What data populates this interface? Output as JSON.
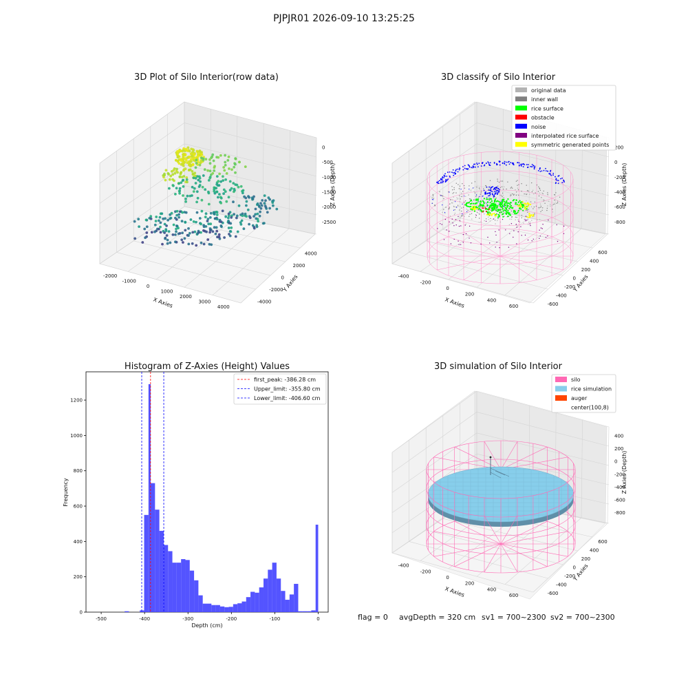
{
  "figure": {
    "suptitle": "PJPJR01 2026-09-10 13:25:25",
    "status": {
      "flag": "flag = 0",
      "avg": "avgDepth = 320 cm",
      "sv1": "sv1 = 700~2300",
      "sv2": "sv2 = 700~2300"
    }
  },
  "panels": {
    "raw": {
      "title": "3D Plot of Silo Interior(row data)",
      "xlabel": "X Axies",
      "ylabel": "Y Axies",
      "zlabel": "Z Axies (Depth)",
      "xticks": [
        "-2000",
        "-1000",
        "0",
        "1000",
        "2000",
        "3000",
        "4000"
      ],
      "yticks": [
        "4000",
        "2000",
        "0",
        "-2000",
        "-4000"
      ],
      "zticks": [
        "0",
        "-500",
        "-1000",
        "-1500",
        "-2000",
        "-2500"
      ]
    },
    "classify": {
      "title": "3D classify of Silo Interior",
      "xlabel": "X Axies",
      "ylabel": "Y Axies",
      "zlabel": "Z Axies (Depth)",
      "xticks": [
        "-400",
        "-200",
        "0",
        "200",
        "400",
        "600"
      ],
      "yticks": [
        "600",
        "400",
        "200",
        "0",
        "-200",
        "-400",
        "-600"
      ],
      "zticks": [
        "200",
        "0",
        "-200",
        "-400",
        "-600",
        "-800"
      ],
      "legend": [
        {
          "label": "original data",
          "color": "#b3b3b3"
        },
        {
          "label": "inner wall",
          "color": "#808080"
        },
        {
          "label": "rice surface",
          "color": "#00ff00"
        },
        {
          "label": "obstacle",
          "color": "#ff0000"
        },
        {
          "label": "noise",
          "color": "#0000ff"
        },
        {
          "label": "interpolated rice surface",
          "color": "#800080"
        },
        {
          "label": "symmetric generated points",
          "color": "#ffff00"
        }
      ]
    },
    "simulation": {
      "title": "3D simulation of Silo Interior",
      "xlabel": "X Axies",
      "ylabel": "Y Axies",
      "zlabel": "Z Axies (Depth)",
      "xticks": [
        "-400",
        "-200",
        "0",
        "200",
        "400",
        "600"
      ],
      "yticks": [
        "600",
        "400",
        "200",
        "0",
        "-200",
        "-400",
        "-600"
      ],
      "zticks": [
        "400",
        "200",
        "0",
        "-200",
        "-400",
        "-600",
        "-800"
      ],
      "legend": [
        {
          "label": "silo",
          "color": "#ff69b4"
        },
        {
          "label": "rice simulation",
          "color": "#87ceeb"
        },
        {
          "label": "auger",
          "color": "#ff4500"
        },
        {
          "label": "center(100,8)",
          "color": "#ffffff"
        }
      ]
    }
  },
  "chart_data": {
    "type": "bar",
    "title": "Histogram of Z-Axies (Height) Values",
    "xlabel": "Depth (cm)",
    "ylabel": "Frequency",
    "xlim": [
      -535,
      23
    ],
    "ylim": [
      0,
      1360
    ],
    "xticks": [
      -500,
      -400,
      -300,
      -200,
      -100,
      0
    ],
    "yticks": [
      0,
      200,
      400,
      600,
      800,
      1000,
      1200
    ],
    "bins": [
      {
        "x0": -446,
        "x1": -436,
        "value": 5
      },
      {
        "x0": -411,
        "x1": -401,
        "value": 10
      },
      {
        "x0": -401,
        "x1": -391,
        "value": 550
      },
      {
        "x0": -391,
        "x1": -386,
        "value": 1290
      },
      {
        "x0": -386,
        "x1": -376,
        "value": 730
      },
      {
        "x0": -376,
        "x1": -366,
        "value": 580
      },
      {
        "x0": -366,
        "x1": -356,
        "value": 460
      },
      {
        "x0": -356,
        "x1": -346,
        "value": 380
      },
      {
        "x0": -346,
        "x1": -336,
        "value": 345
      },
      {
        "x0": -336,
        "x1": -326,
        "value": 280
      },
      {
        "x0": -326,
        "x1": -316,
        "value": 280
      },
      {
        "x0": -316,
        "x1": -306,
        "value": 300
      },
      {
        "x0": -306,
        "x1": -296,
        "value": 295
      },
      {
        "x0": -296,
        "x1": -286,
        "value": 235
      },
      {
        "x0": -286,
        "x1": -276,
        "value": 180
      },
      {
        "x0": -276,
        "x1": -266,
        "value": 95
      },
      {
        "x0": -266,
        "x1": -256,
        "value": 48
      },
      {
        "x0": -256,
        "x1": -246,
        "value": 48
      },
      {
        "x0": -246,
        "x1": -236,
        "value": 40
      },
      {
        "x0": -236,
        "x1": -226,
        "value": 40
      },
      {
        "x0": -226,
        "x1": -216,
        "value": 32
      },
      {
        "x0": -216,
        "x1": -206,
        "value": 28
      },
      {
        "x0": -206,
        "x1": -196,
        "value": 30
      },
      {
        "x0": -196,
        "x1": -186,
        "value": 45
      },
      {
        "x0": -186,
        "x1": -176,
        "value": 50
      },
      {
        "x0": -176,
        "x1": -166,
        "value": 60
      },
      {
        "x0": -166,
        "x1": -156,
        "value": 85
      },
      {
        "x0": -156,
        "x1": -146,
        "value": 115
      },
      {
        "x0": -146,
        "x1": -136,
        "value": 110
      },
      {
        "x0": -136,
        "x1": -126,
        "value": 140
      },
      {
        "x0": -126,
        "x1": -116,
        "value": 190
      },
      {
        "x0": -116,
        "x1": -106,
        "value": 240
      },
      {
        "x0": -106,
        "x1": -96,
        "value": 280
      },
      {
        "x0": -96,
        "x1": -86,
        "value": 190
      },
      {
        "x0": -86,
        "x1": -76,
        "value": 120
      },
      {
        "x0": -76,
        "x1": -66,
        "value": 70
      },
      {
        "x0": -66,
        "x1": -56,
        "value": 100
      },
      {
        "x0": -56,
        "x1": -46,
        "value": 160
      },
      {
        "x0": -46,
        "x1": -36,
        "value": 5
      },
      {
        "x0": -36,
        "x1": -26,
        "value": 5
      },
      {
        "x0": -26,
        "x1": -16,
        "value": 5
      },
      {
        "x0": -16,
        "x1": -6,
        "value": 10
      },
      {
        "x0": -6,
        "x1": 0,
        "value": 495
      }
    ],
    "bar_color": "#4b4bff",
    "vlines": [
      {
        "label": "first_peak: -386.28 cm",
        "x": -386.28,
        "color": "#ff0000"
      },
      {
        "label": "Upper_limit: -355.80 cm",
        "x": -355.8,
        "color": "#0000ff"
      },
      {
        "label": "Lower_limit: -406.60 cm",
        "x": -406.6,
        "color": "#0000ff"
      }
    ],
    "legend_position": "upper right"
  }
}
